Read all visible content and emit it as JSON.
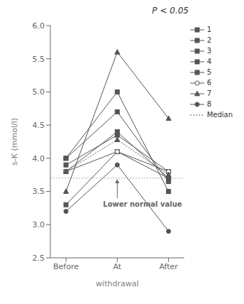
{
  "chart_data": {
    "type": "line",
    "title": "P < 0.05",
    "xlabel": "withdrawal",
    "ylabel": "s-K (mmol/l)",
    "categories": [
      "Before",
      "At",
      "After"
    ],
    "ylim": [
      2.5,
      6.0
    ],
    "yticks": [
      2.5,
      {
        "value": 3.0,
        "label": "3.0"
      },
      3.5,
      {
        "value": 4.0,
        "label": "4.0"
      },
      4.5,
      {
        "value": 5.0,
        "label": "5.0"
      },
      5.5,
      {
        "value": 6.0,
        "label": "6.0"
      }
    ],
    "grid": false,
    "legend": "right",
    "series": [
      {
        "name": "1",
        "color": "#555555",
        "marker": "square",
        "line_style": "solid",
        "values": [
          4.0,
          5.0,
          3.5
        ]
      },
      {
        "name": "2",
        "color": "#555555",
        "marker": "square",
        "line_style": "solid",
        "values": [
          3.3,
          4.1,
          3.7
        ]
      },
      {
        "name": "3",
        "color": "#555555",
        "marker": "square",
        "line_style": "solid",
        "values": [
          3.8,
          4.4,
          3.7
        ]
      },
      {
        "name": "4",
        "color": "#555555",
        "marker": "square",
        "line_style": "solid",
        "values": [
          3.9,
          4.35,
          3.8
        ]
      },
      {
        "name": "5",
        "color": "#555555",
        "marker": "square",
        "line_style": "solid",
        "values": [
          4.0,
          4.7,
          3.65
        ]
      },
      {
        "name": "6",
        "color": "#555555",
        "marker": "open_circle",
        "line_style": "solid",
        "values": [
          3.8,
          4.1,
          3.8
        ]
      },
      {
        "name": "7",
        "color": "#555555",
        "marker": "triangle",
        "line_style": "solid",
        "values": [
          3.5,
          5.6,
          4.6
        ]
      },
      {
        "name": "8",
        "color": "#555555",
        "marker": "circle",
        "line_style": "solid",
        "values": [
          3.2,
          3.9,
          2.9
        ]
      },
      {
        "name": "Median",
        "color": "#555555",
        "marker": "triangle",
        "line_style": "dotted",
        "values": [
          3.8,
          4.28,
          3.75
        ]
      }
    ],
    "reference_lines": [
      {
        "y": 3.7,
        "color": "#aaaaaa",
        "line_style": "dotted"
      }
    ],
    "annotations": [
      {
        "text": "Lower normal value",
        "x": "At",
        "y": 3.7,
        "color": "#666666"
      }
    ]
  }
}
